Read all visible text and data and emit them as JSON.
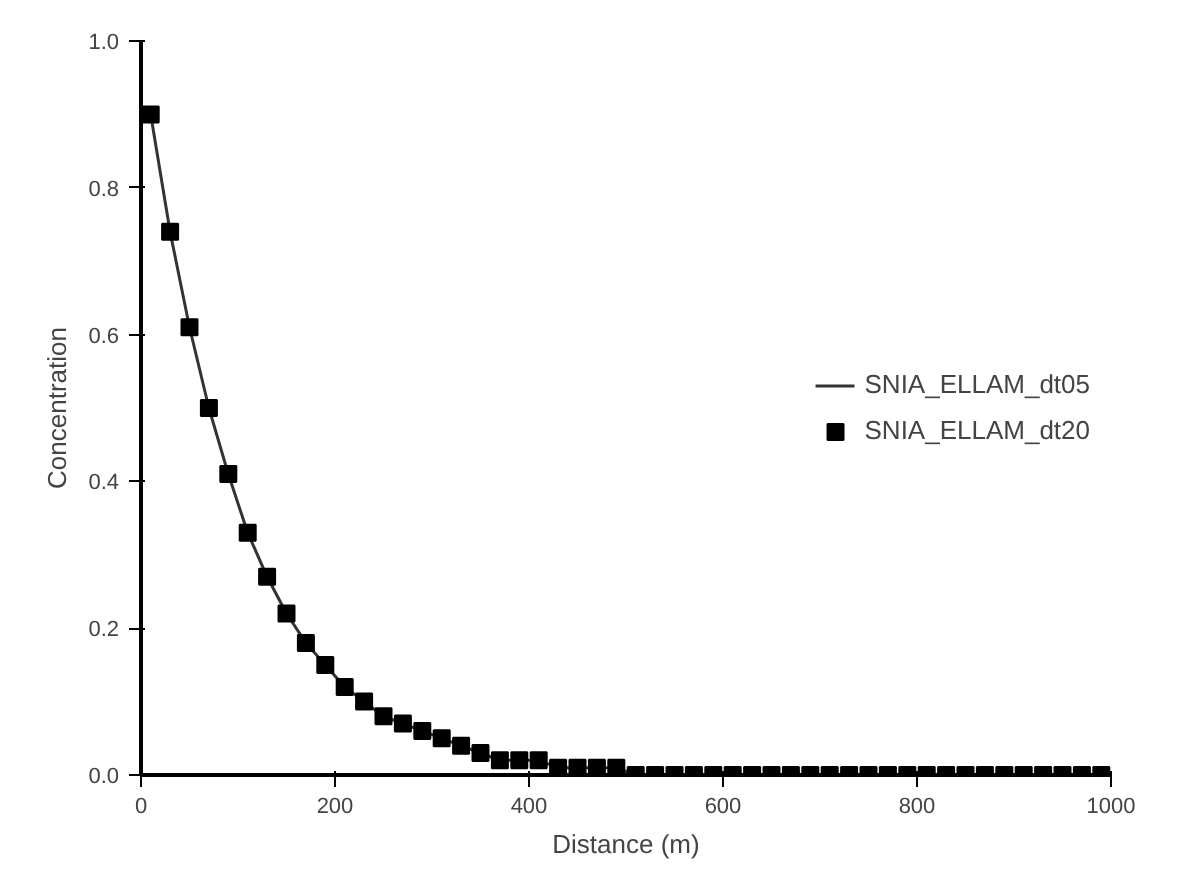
{
  "chart_data": {
    "type": "line",
    "xlabel": "Distance (m)",
    "ylabel": "Concentration",
    "x": [
      10,
      30,
      50,
      70,
      90,
      110,
      130,
      150,
      170,
      190,
      210,
      230,
      250,
      270,
      290,
      310,
      330,
      350,
      370,
      390,
      410,
      430,
      450,
      470,
      490,
      510,
      530,
      550,
      570,
      590,
      610,
      630,
      650,
      670,
      690,
      710,
      730,
      750,
      770,
      790,
      810,
      830,
      850,
      870,
      890,
      910,
      930,
      950,
      970,
      990
    ],
    "series": [
      {
        "name": "SNIA_ELLAM_dt05",
        "color": "#333333",
        "marker": "none",
        "line_style": "solid",
        "values": [
          0.9,
          0.74,
          0.61,
          0.5,
          0.41,
          0.33,
          0.27,
          0.22,
          0.18,
          0.15,
          0.12,
          0.1,
          0.08,
          0.07,
          0.06,
          0.05,
          0.04,
          0.03,
          0.02,
          0.02,
          0.02,
          0.01,
          0.01,
          0.01,
          0.01,
          0.0,
          0.0,
          0.0,
          0.0,
          0.0,
          0.0,
          0.0,
          0.0,
          0.0,
          0.0,
          0.0,
          0.0,
          0.0,
          0.0,
          0.0,
          0.0,
          0.0,
          0.0,
          0.0,
          0.0,
          0.0,
          0.0,
          0.0,
          0.0,
          0.0
        ]
      },
      {
        "name": "SNIA_ELLAM_dt20",
        "type": "scatter",
        "color": "#000000",
        "marker": "square",
        "values": [
          0.9,
          0.74,
          0.61,
          0.5,
          0.41,
          0.33,
          0.27,
          0.22,
          0.18,
          0.15,
          0.12,
          0.1,
          0.08,
          0.07,
          0.06,
          0.05,
          0.04,
          0.03,
          0.02,
          0.02,
          0.02,
          0.01,
          0.01,
          0.01,
          0.01,
          0.0,
          0.0,
          0.0,
          0.0,
          0.0,
          0.0,
          0.0,
          0.0,
          0.0,
          0.0,
          0.0,
          0.0,
          0.0,
          0.0,
          0.0,
          0.0,
          0.0,
          0.0,
          0.0,
          0.0,
          0.0,
          0.0,
          0.0,
          0.0,
          0.0
        ]
      }
    ],
    "xlim": [
      0,
      1000
    ],
    "xticks": [
      0,
      200,
      400,
      600,
      800,
      1000
    ],
    "ylim": [
      0,
      1.0
    ],
    "yticks": [
      {
        "value": 0,
        "label": "0.0"
      },
      {
        "value": 0.2,
        "label": "0.2"
      },
      {
        "value": 0.4,
        "label": "0.4"
      },
      {
        "value": 0.6,
        "label": "0.6"
      },
      {
        "value": 0.8,
        "label": "0.8"
      },
      {
        "value": 1.0,
        "label": "1.0"
      }
    ],
    "grid": false,
    "legend": "right"
  }
}
